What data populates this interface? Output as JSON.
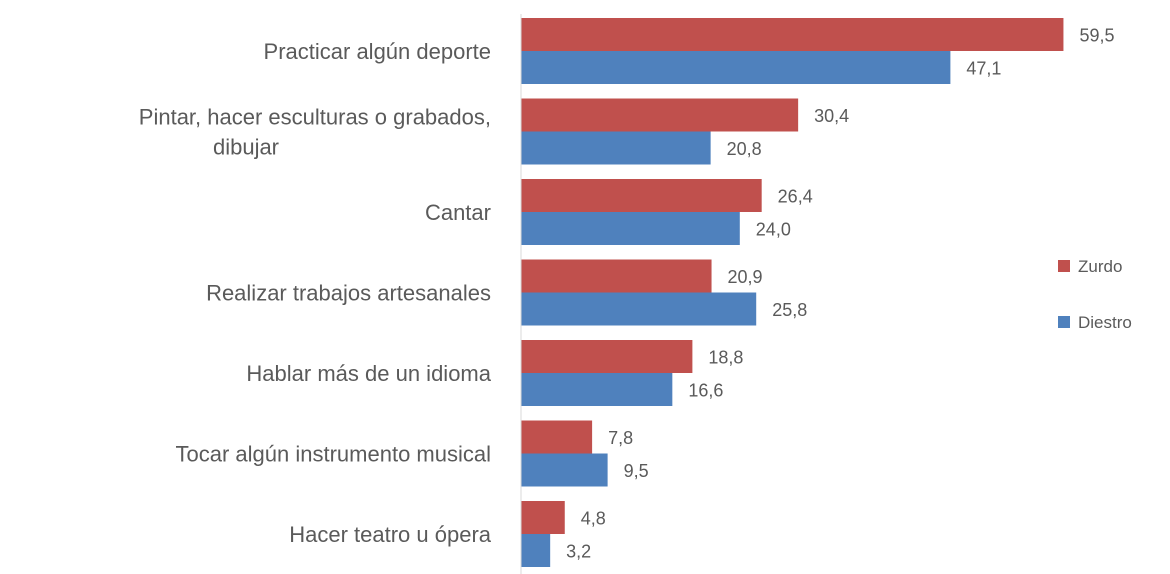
{
  "chart_data": {
    "type": "bar",
    "orientation": "horizontal",
    "categories": [
      [
        "Practicar algún deporte"
      ],
      [
        "Pintar, hacer esculturas o grabados,",
        "dibujar"
      ],
      [
        "Cantar"
      ],
      [
        "Realizar trabajos artesanales"
      ],
      [
        "Hablar más de un idioma"
      ],
      [
        "Tocar algún instrumento musical"
      ],
      [
        "Hacer teatro u ópera"
      ]
    ],
    "series": [
      {
        "name": "Zurdo",
        "color": "#c0504d",
        "values": [
          59.5,
          30.4,
          26.4,
          20.9,
          18.8,
          7.8,
          4.8
        ],
        "labels": [
          "59,5",
          "30,4",
          "26,4",
          "20,9",
          "18,8",
          "7,8",
          "4,8"
        ]
      },
      {
        "name": "Diestro",
        "color": "#4f81bd",
        "values": [
          47.1,
          20.8,
          24.0,
          25.8,
          16.6,
          9.5,
          3.2
        ],
        "labels": [
          "47,1",
          "20,8",
          "24,0",
          "25,8",
          "16,6",
          "9,5",
          "3,2"
        ]
      }
    ],
    "xlim": [
      0,
      60
    ],
    "grid": false,
    "legend_position": "right"
  }
}
